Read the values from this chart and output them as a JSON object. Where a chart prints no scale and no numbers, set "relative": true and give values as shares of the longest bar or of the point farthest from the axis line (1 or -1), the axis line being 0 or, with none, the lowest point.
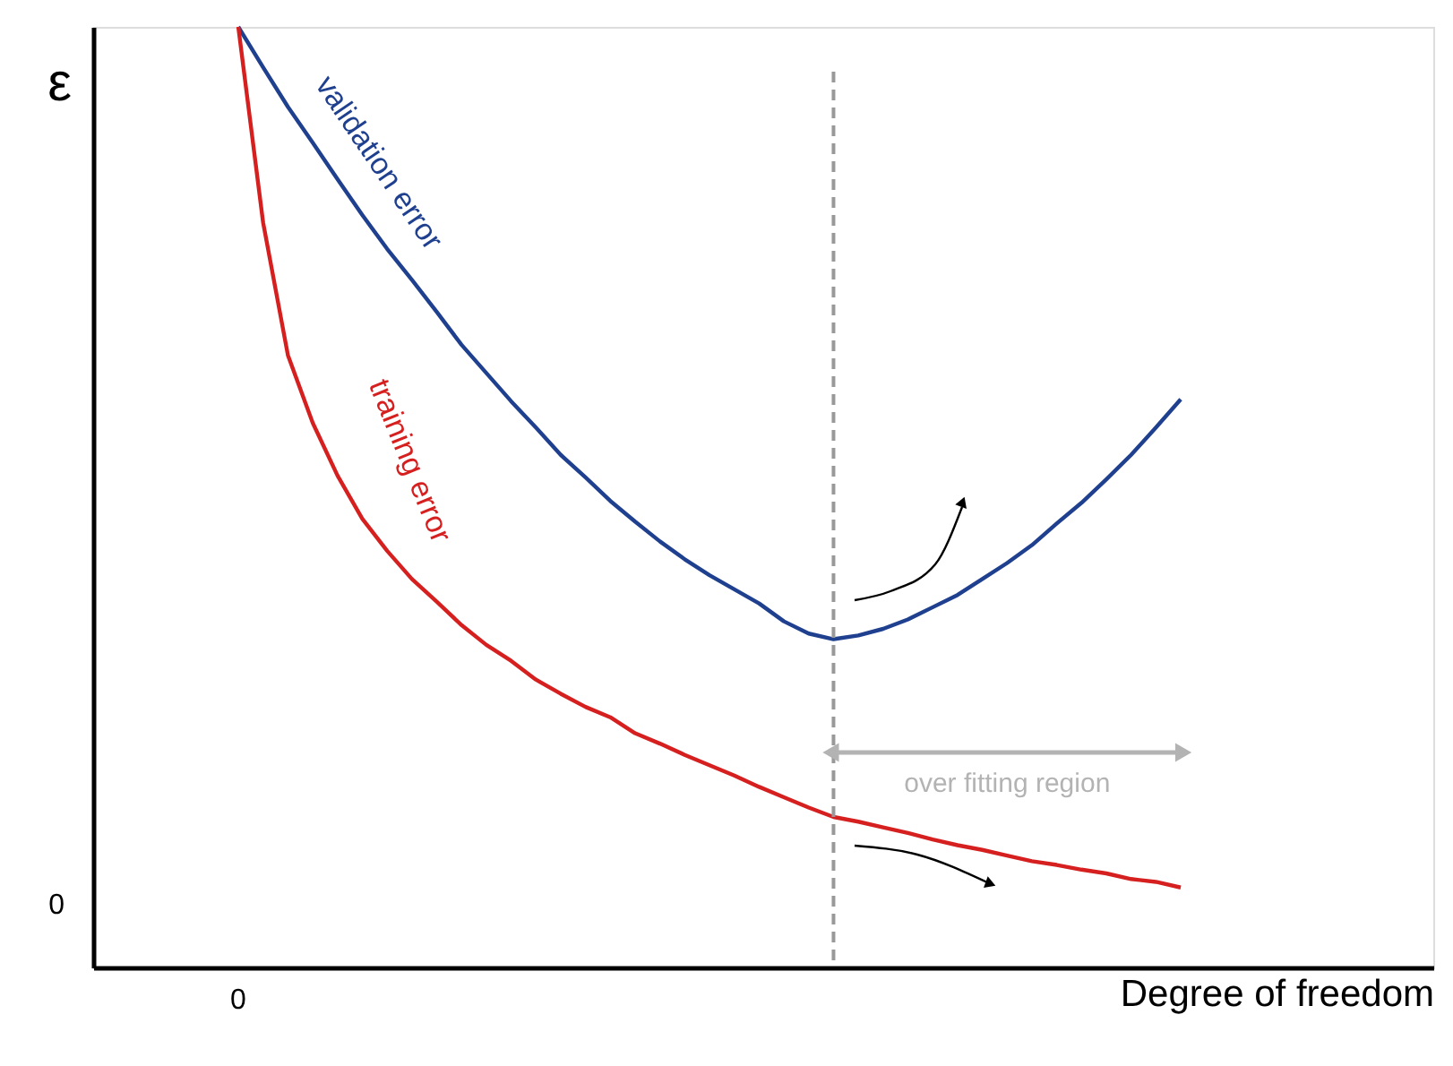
{
  "chart_data": {
    "type": "line",
    "relative": true,
    "xlabel": "Degree of freedom",
    "ylabel": "ε",
    "marker": "none",
    "line_style": "solid",
    "categories": [
      null,
      null,
      null,
      null,
      null,
      null,
      null,
      null,
      null,
      null,
      null,
      null,
      null,
      null,
      null,
      null,
      null,
      null,
      null,
      null,
      null,
      null,
      null,
      null,
      null,
      null,
      null,
      null,
      null,
      null,
      null,
      null,
      null,
      null,
      null,
      null,
      null,
      null,
      null
    ],
    "series": [
      {
        "name": "validation error",
        "color": "#1f3f8f",
        "values": [
          1.0,
          0.957,
          0.915,
          0.877,
          0.838,
          0.8,
          0.764,
          0.731,
          0.697,
          0.662,
          0.632,
          0.602,
          0.574,
          0.545,
          0.521,
          0.496,
          0.474,
          0.453,
          0.434,
          0.417,
          0.402,
          0.387,
          0.368,
          0.355,
          0.349,
          0.353,
          0.36,
          0.37,
          0.383,
          0.396,
          0.413,
          0.43,
          0.449,
          0.472,
          0.494,
          0.519,
          0.545,
          0.574,
          0.604
        ]
      },
      {
        "name": "training error",
        "color": "#d62020",
        "values": [
          1.0,
          0.792,
          0.651,
          0.579,
          0.523,
          0.477,
          0.443,
          0.413,
          0.389,
          0.364,
          0.343,
          0.326,
          0.306,
          0.291,
          0.277,
          0.266,
          0.249,
          0.238,
          0.226,
          0.215,
          0.204,
          0.192,
          0.181,
          0.17,
          0.16,
          0.155,
          0.149,
          0.143,
          0.136,
          0.13,
          0.125,
          0.119,
          0.113,
          0.109,
          0.104,
          0.1,
          0.094,
          0.091,
          0.085
        ]
      }
    ],
    "annotations": [
      "0",
      "0",
      "over fitting region"
    ]
  }
}
